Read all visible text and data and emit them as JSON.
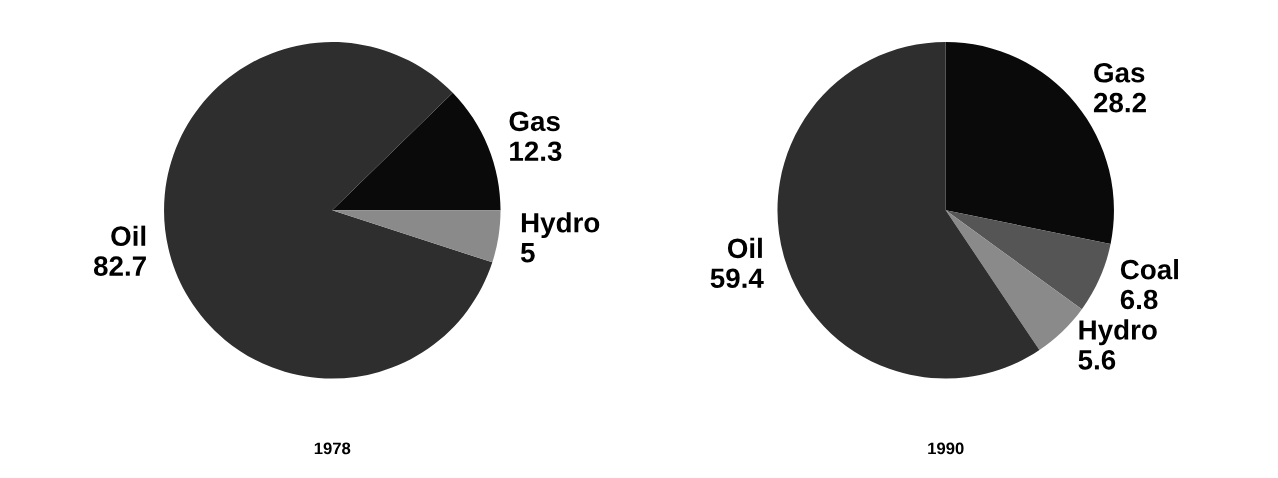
{
  "chart_data": [
    {
      "type": "pie",
      "title": "1978",
      "categories": [
        "Gas",
        "Oil",
        "Hydro"
      ],
      "values": [
        12.3,
        82.7,
        5
      ],
      "colors": [
        "#0a0a0a",
        "#2e2e2e",
        "#8a8a8a"
      ],
      "data_labels": true
    },
    {
      "type": "pie",
      "title": "1990",
      "categories": [
        "Gas",
        "Coal",
        "Hydro",
        "Oil"
      ],
      "values": [
        28.2,
        6.8,
        5.6,
        59.4
      ],
      "colors": [
        "#0a0a0a",
        "#555555",
        "#8a8a8a",
        "#2e2e2e"
      ],
      "data_labels": true
    }
  ]
}
